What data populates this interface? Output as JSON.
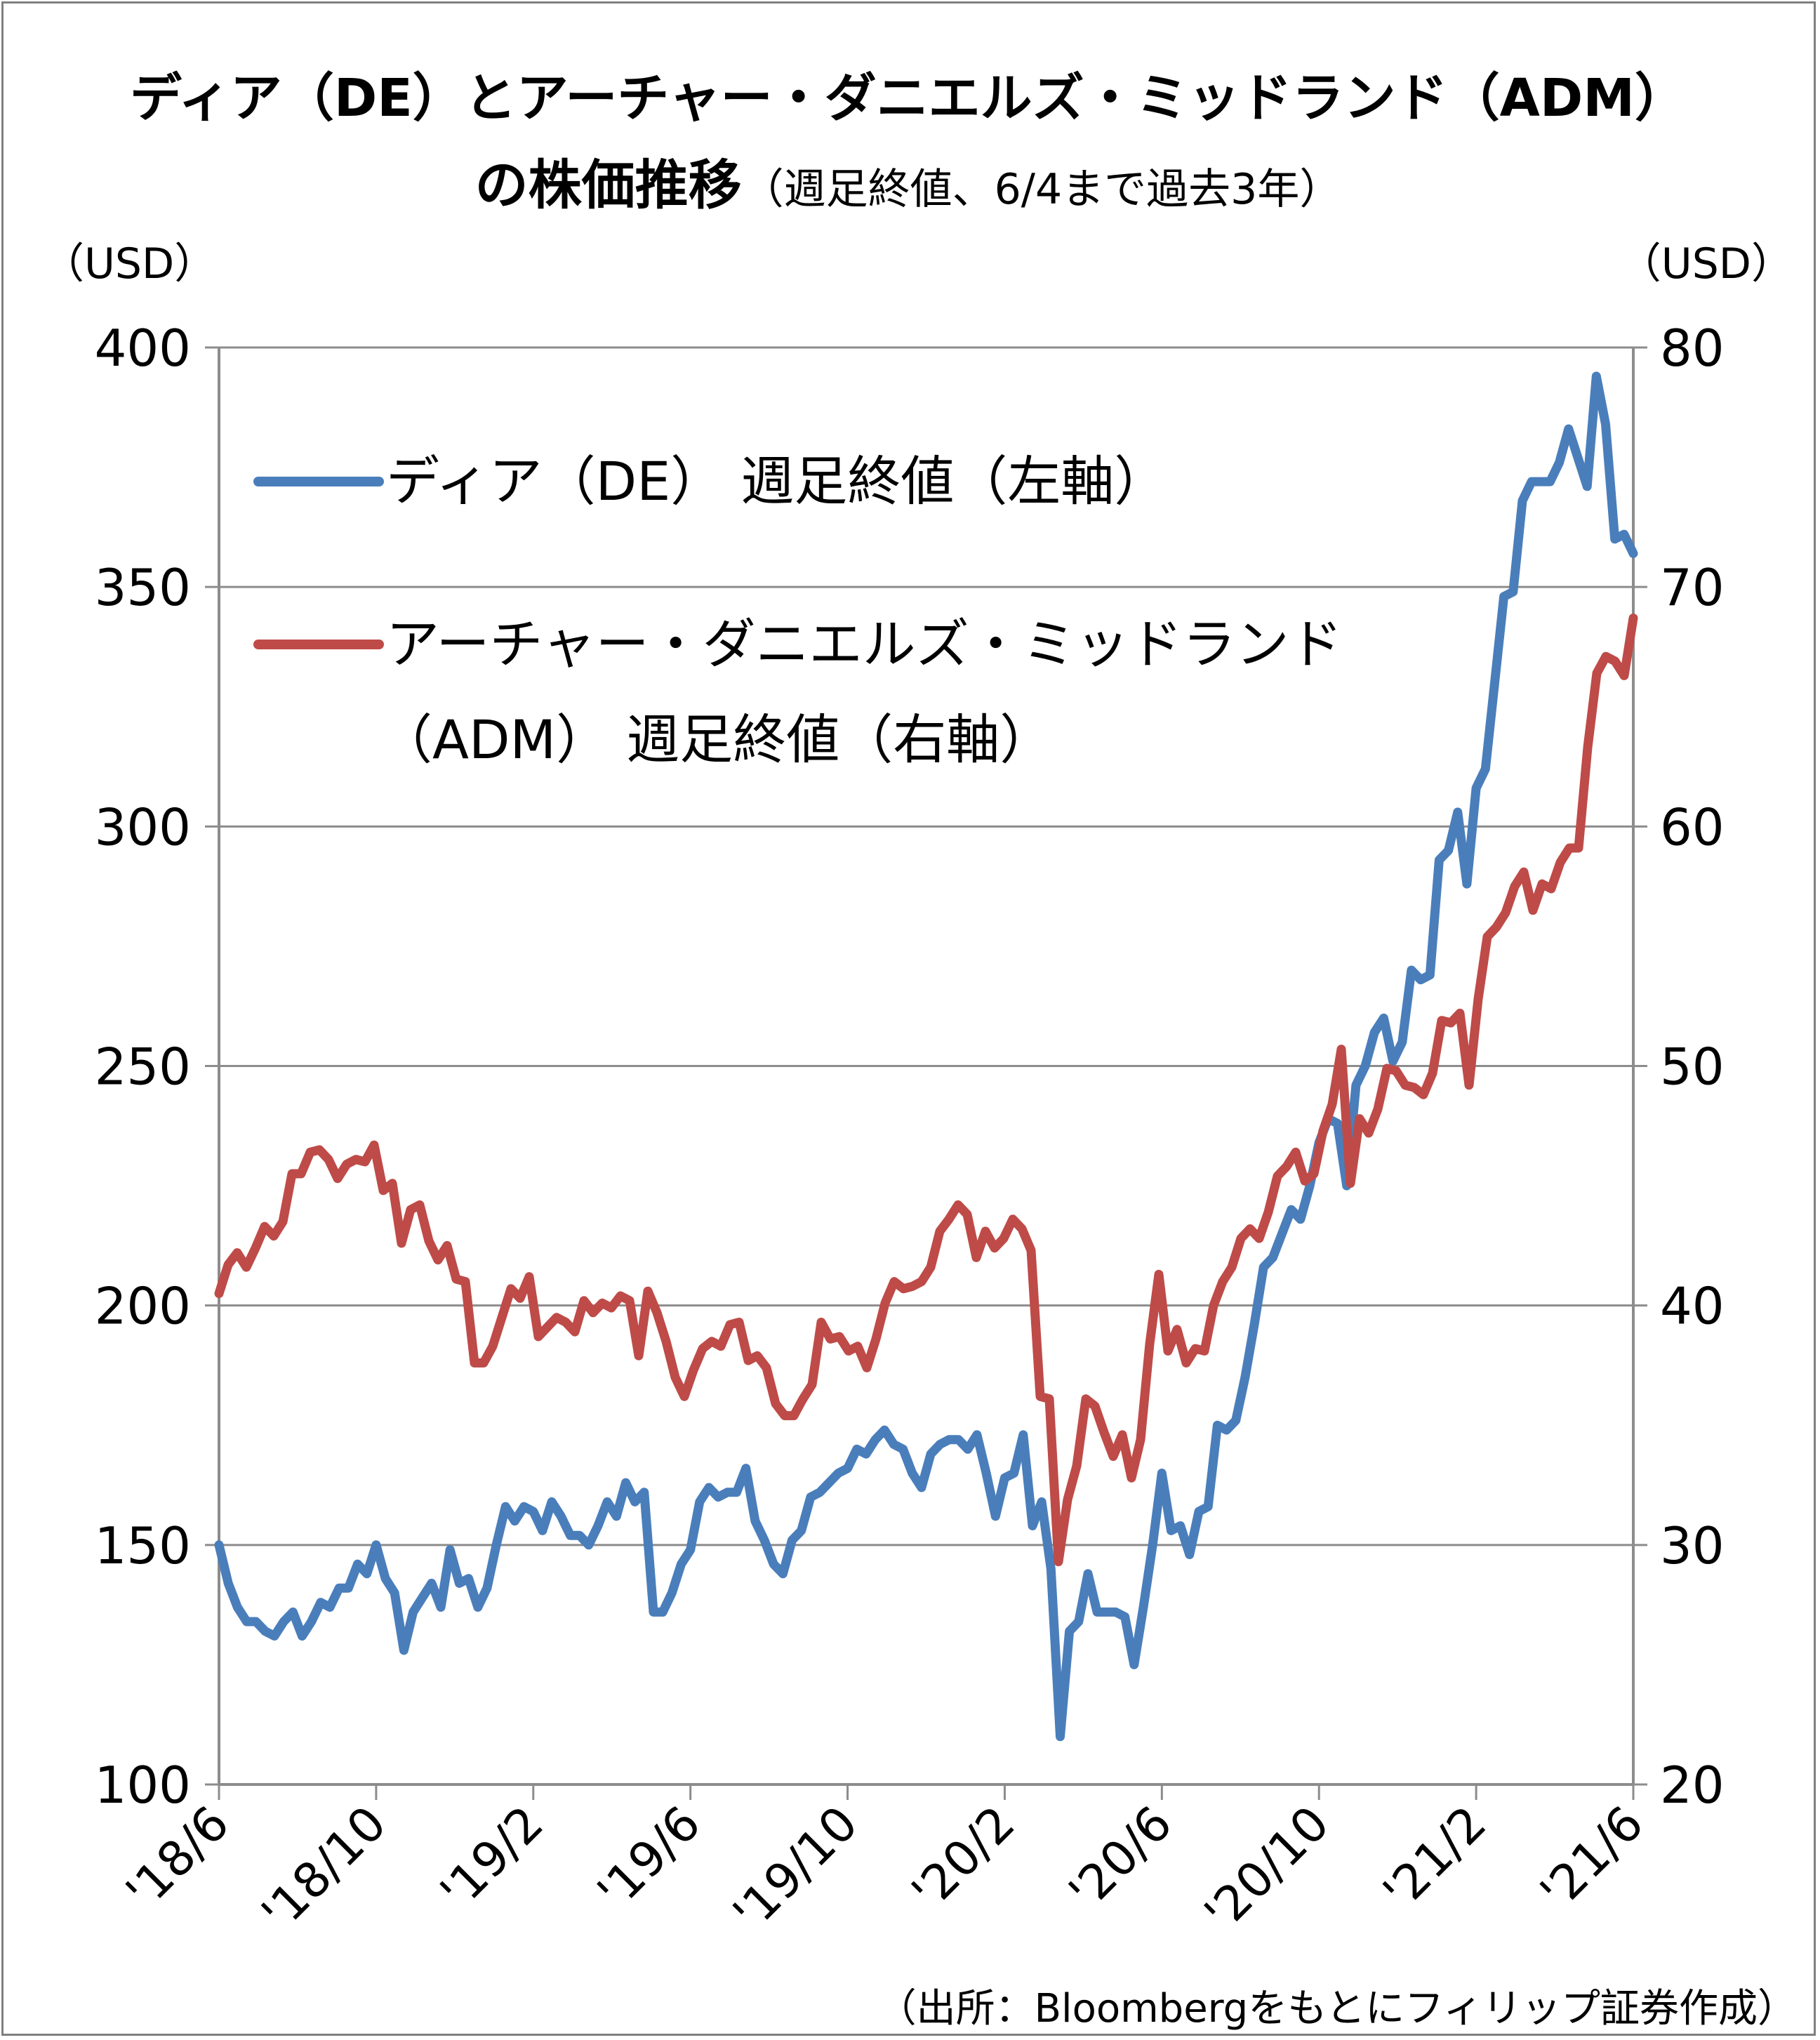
{
  "chart_data": {
    "type": "line",
    "title_line1": "ディア（DE）とアーチャー・ダニエルズ・ミッドランド（ADM）",
    "title_line2_main": "の株価推移",
    "title_line2_sub": "（週足終値、6/4まで過去3年）",
    "left_unit": "（USD）",
    "right_unit": "（USD）",
    "source": "（出所：Bloombergをもとにフィリップ証券作成）",
    "legend_position": "top-left",
    "grid": true,
    "left_axis": {
      "ylim": [
        100,
        400
      ],
      "ticks": [
        "100",
        "150",
        "200",
        "250",
        "300",
        "350",
        "400"
      ]
    },
    "right_axis": {
      "ylim": [
        20,
        80
      ],
      "ticks": [
        "20",
        "30",
        "40",
        "50",
        "60",
        "70",
        "80"
      ]
    },
    "x_ticks": [
      "'18/6",
      "'18/10",
      "'19/2",
      "'19/6",
      "'19/10",
      "'20/2",
      "'20/6",
      "'20/10",
      "'21/2",
      "'21/6"
    ],
    "series": [
      {
        "name": "ディア（DE）週足終値（左軸）",
        "legend_line1": "ディア（DE） 週足終値（左軸）",
        "axis": "left",
        "color": "#4a7ebb",
        "values": [
          150,
          142,
          137,
          134,
          134,
          132,
          131,
          134,
          136,
          131,
          134,
          138,
          137,
          141,
          141,
          146,
          144,
          150,
          143,
          140,
          128,
          136,
          139,
          142,
          137,
          149,
          142,
          143,
          137,
          141,
          150,
          158,
          155,
          158,
          157,
          153,
          159,
          156,
          152,
          152,
          150,
          154,
          159,
          156,
          163,
          159,
          161,
          136,
          136,
          140,
          146,
          149,
          159,
          162,
          160,
          161,
          161,
          166,
          155,
          151,
          146,
          144,
          151,
          153,
          160,
          161,
          163,
          165,
          166,
          170,
          169,
          172,
          174,
          171,
          170,
          165,
          162,
          169,
          171,
          172,
          172,
          170,
          173,
          165,
          156,
          164,
          165,
          173,
          154,
          159,
          145,
          110,
          132,
          134,
          144,
          136,
          136,
          136,
          135,
          125,
          137,
          150,
          165,
          153,
          154,
          148,
          157,
          158,
          175,
          174,
          176,
          185,
          196,
          208,
          210,
          215,
          220,
          218,
          225,
          234,
          239,
          238,
          225,
          246,
          250,
          257,
          260,
          251,
          255,
          270,
          268,
          269,
          293,
          295,
          303,
          288,
          308,
          312,
          330,
          348,
          349,
          368,
          372,
          372,
          372,
          376,
          383,
          377,
          371,
          394,
          384,
          360,
          361,
          357
        ]
      },
      {
        "name": "アーチャー・ダニエルズ・ミッドランド（ADM）週足終値（右軸）",
        "legend_line1": "アーチャー・ダニエルズ・ミッドランド",
        "legend_line2": "（ADM） 週足終値（右軸）",
        "axis": "right",
        "color": "#be4b48",
        "values": [
          40.5,
          41.7,
          42.2,
          41.6,
          42.4,
          43.3,
          42.9,
          43.5,
          45.5,
          45.5,
          46.4,
          46.5,
          46.1,
          45.3,
          45.9,
          46.1,
          46.0,
          46.7,
          44.8,
          45.1,
          42.6,
          44.0,
          44.2,
          42.7,
          41.9,
          42.5,
          41.1,
          41.0,
          37.6,
          37.6,
          38.3,
          39.5,
          40.7,
          40.3,
          41.2,
          38.7,
          39.1,
          39.5,
          39.3,
          38.9,
          40.2,
          39.7,
          40.1,
          39.9,
          40.4,
          40.2,
          37.9,
          40.6,
          39.7,
          38.5,
          37.0,
          36.2,
          37.3,
          38.2,
          38.5,
          38.3,
          39.2,
          39.3,
          37.7,
          37.9,
          37.4,
          35.9,
          35.4,
          35.4,
          36.1,
          36.7,
          39.3,
          38.6,
          38.7,
          38.1,
          38.3,
          37.4,
          38.6,
          40.1,
          41.0,
          40.7,
          40.8,
          41.0,
          41.6,
          43.1,
          43.6,
          44.2,
          43.8,
          42.0,
          43.1,
          42.4,
          42.8,
          43.6,
          43.2,
          42.3,
          36.2,
          36.1,
          29.3,
          31.9,
          33.3,
          36.1,
          35.8,
          34.7,
          33.7,
          34.6,
          32.8,
          34.4,
          38.4,
          41.3,
          38.1,
          39.0,
          37.6,
          38.2,
          38.1,
          40.0,
          41.0,
          41.6,
          42.8,
          43.2,
          42.8,
          43.9,
          45.4,
          45.8,
          46.4,
          45.2,
          45.5,
          47.3,
          48.4,
          50.7,
          45.1,
          47.8,
          47.2,
          48.2,
          49.9,
          49.8,
          49.2,
          49.1,
          48.8,
          49.7,
          51.9,
          51.8,
          52.2,
          49.2,
          52.8,
          55.4,
          55.8,
          56.4,
          57.5,
          58.1,
          56.5,
          57.6,
          57.4,
          58.5,
          59.1,
          59.1,
          63.3,
          66.4,
          67.1,
          66.9,
          66.3,
          68.7
        ]
      }
    ]
  }
}
